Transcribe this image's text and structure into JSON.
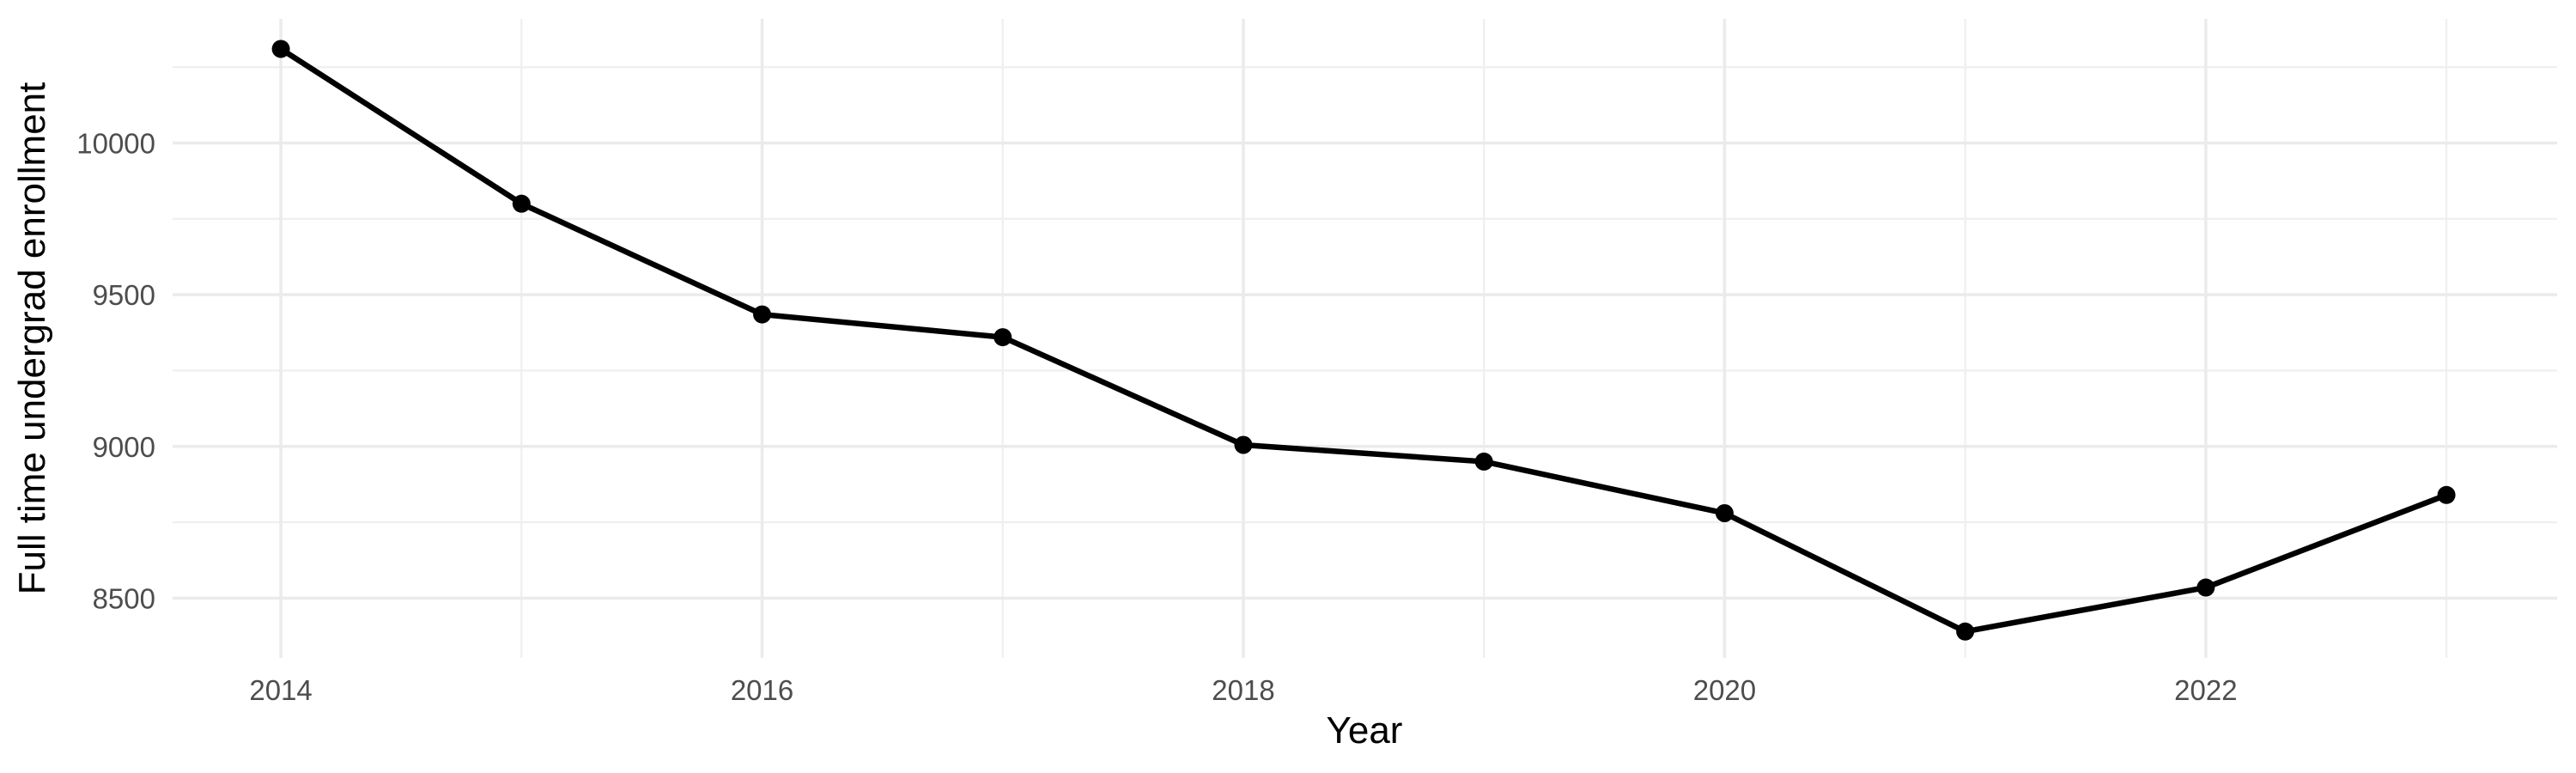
{
  "chart_data": {
    "type": "line",
    "title": "",
    "xlabel": "Year",
    "ylabel": "Full time undergrad enrollment",
    "x": [
      2014,
      2015,
      2016,
      2017,
      2018,
      2019,
      2020,
      2021,
      2022,
      2023
    ],
    "values": [
      10310,
      9800,
      9435,
      9360,
      9005,
      8950,
      8780,
      8390,
      8535,
      8840
    ],
    "series_name": "Full time undergrad enrollment",
    "x_ticks": [
      2014,
      2016,
      2018,
      2020,
      2022
    ],
    "x_minor_ticks": [
      2015,
      2017,
      2019,
      2021,
      2023
    ],
    "y_ticks": [
      8500,
      9000,
      9500,
      10000
    ],
    "y_minor_ticks": [
      8750,
      9250,
      9750,
      10250
    ],
    "xlim": [
      2013.55,
      2023.46
    ],
    "ylim": [
      8303,
      10409
    ],
    "grid": "on",
    "legend": "none",
    "colors": {
      "line": "#000000",
      "point": "#000000",
      "grid_major": "#EBEBEB",
      "grid_minor": "#EFEFEF",
      "tick_label": "#4D4D4D",
      "axis_title": "#000000",
      "background": "#FFFFFF"
    }
  }
}
